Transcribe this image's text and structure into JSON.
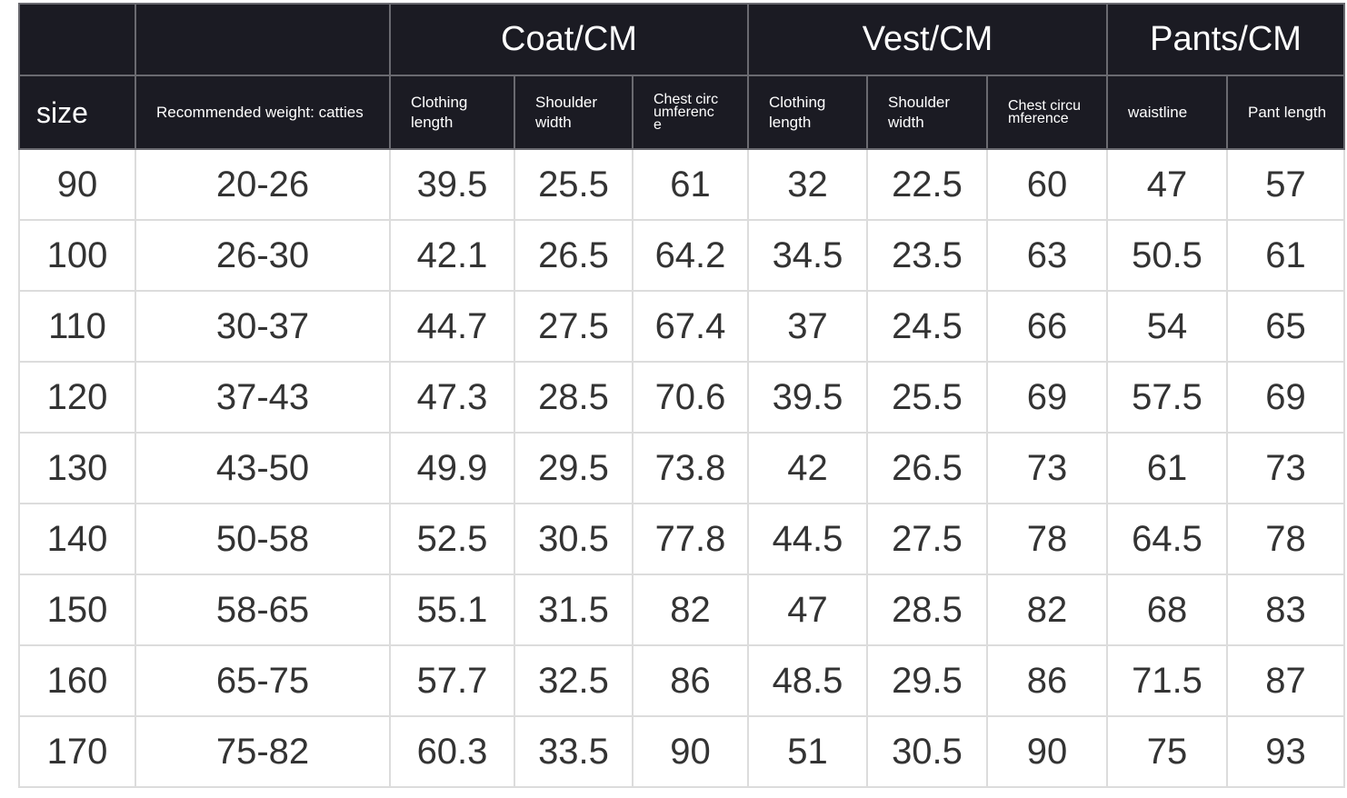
{
  "header": {
    "groups": [
      "Coat/CM",
      "Vest/CM",
      "Pants/CM"
    ],
    "columns": [
      "size",
      "Recommended weight: catties",
      "Clothing length",
      "Shoulder width",
      "Chest circumference",
      "Clothing length",
      "Shoulder width",
      "Chest circumference",
      "waistline",
      "Pant length"
    ]
  },
  "table": {
    "rows": [
      [
        90,
        "20-26",
        39.5,
        25.5,
        61,
        32,
        22.5,
        60,
        47,
        57
      ],
      [
        100,
        "26-30",
        42.1,
        26.5,
        64.2,
        34.5,
        23.5,
        63,
        50.5,
        61
      ],
      [
        110,
        "30-37",
        44.7,
        27.5,
        67.4,
        37,
        24.5,
        66,
        54,
        65
      ],
      [
        120,
        "37-43",
        47.3,
        28.5,
        70.6,
        39.5,
        25.5,
        69,
        57.5,
        69
      ],
      [
        130,
        "43-50",
        49.9,
        29.5,
        73.8,
        42,
        26.5,
        73,
        61,
        73
      ],
      [
        140,
        "50-58",
        52.5,
        30.5,
        77.8,
        44.5,
        27.5,
        78,
        64.5,
        78
      ],
      [
        150,
        "58-65",
        55.1,
        31.5,
        82,
        47,
        28.5,
        82,
        68,
        83
      ],
      [
        160,
        "65-75",
        57.7,
        32.5,
        86,
        48.5,
        29.5,
        86,
        71.5,
        87
      ],
      [
        170,
        "75-82",
        60.3,
        33.5,
        90,
        51,
        30.5,
        90,
        75,
        93
      ]
    ]
  }
}
